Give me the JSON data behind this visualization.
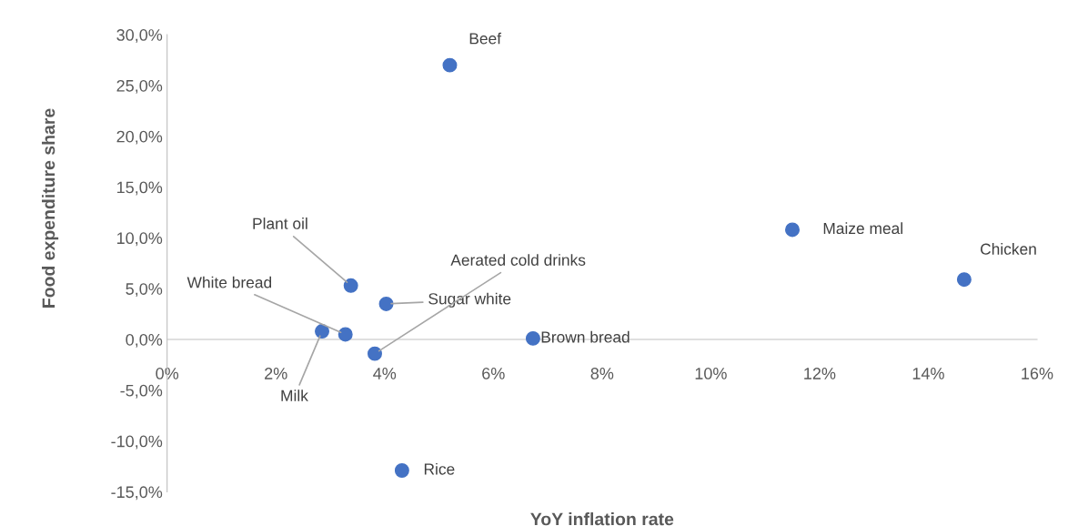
{
  "chart_data": {
    "type": "scatter",
    "xlabel": "YoY inflation rate",
    "ylabel": "Food expenditure share",
    "series": [
      {
        "color": "#4472c4",
        "x": [
          5.2,
          11.5,
          14.66,
          3.38,
          4.03,
          3.82,
          3.28,
          2.85,
          6.73,
          4.32
        ],
        "values": [
          27.0,
          10.8,
          5.9,
          5.3,
          3.5,
          -1.4,
          0.5,
          0.8,
          0.1,
          -12.9
        ]
      }
    ],
    "annotations": [
      {
        "text": "Beef",
        "x": 5.2,
        "y": 27.0
      },
      {
        "text": "Maize meal",
        "x": 11.5,
        "y": 10.8
      },
      {
        "text": "Chicken",
        "x": 14.66,
        "y": 5.9
      },
      {
        "text": "Plant oil",
        "x": 3.38,
        "y": 5.3
      },
      {
        "text": "Sugar white",
        "x": 4.03,
        "y": 3.5
      },
      {
        "text": "Aerated cold drinks",
        "x": 3.82,
        "y": -1.4
      },
      {
        "text": "White bread",
        "x": 3.28,
        "y": 0.5
      },
      {
        "text": "Milk",
        "x": 2.85,
        "y": 0.8
      },
      {
        "text": "Brown bread",
        "x": 6.73,
        "y": 0.1
      },
      {
        "text": "Rice",
        "x": 4.32,
        "y": -12.9
      }
    ],
    "xlim": [
      0,
      16
    ],
    "xticks": [
      {
        "value": 0,
        "label": "0%"
      },
      {
        "value": 2,
        "label": "2%"
      },
      {
        "value": 4,
        "label": "4%"
      },
      {
        "value": 6,
        "label": "6%"
      },
      {
        "value": 8,
        "label": "8%"
      },
      {
        "value": 10,
        "label": "10%"
      },
      {
        "value": 12,
        "label": "12%"
      },
      {
        "value": 14,
        "label": "14%"
      },
      {
        "value": 16,
        "label": "16%"
      }
    ],
    "ylim": [
      -15,
      30
    ],
    "yticks": [
      {
        "value": -15,
        "label": "-15,0%"
      },
      {
        "value": -10,
        "label": "-10,0%"
      },
      {
        "value": -5,
        "label": "-5,0%"
      },
      {
        "value": 0,
        "label": "0,0%"
      },
      {
        "value": 5,
        "label": "5,0%"
      },
      {
        "value": 10,
        "label": "10,0%"
      },
      {
        "value": 15,
        "label": "15,0%"
      },
      {
        "value": 20,
        "label": "20,0%"
      },
      {
        "value": 25,
        "label": "25,0%"
      },
      {
        "value": 30,
        "label": "30,0%"
      }
    ],
    "grid": false,
    "legend": false,
    "marker": "circle"
  }
}
